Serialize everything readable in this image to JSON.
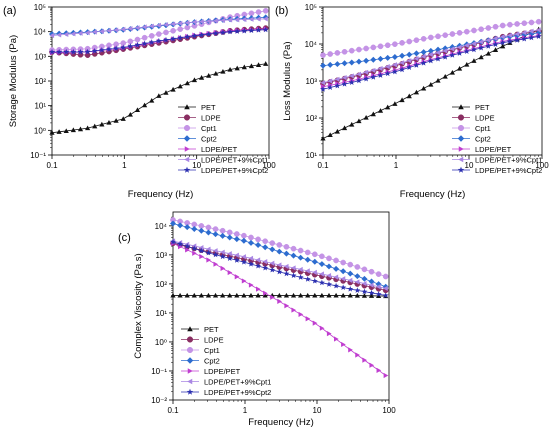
{
  "colors": {
    "PET": "#111111",
    "LDPE": "#8a2e62",
    "Cpt1": "#c493e6",
    "Cpt2": "#2d6ccf",
    "LDPE/PET": "#c03ed0",
    "LDPE/PET+9%Cpt1": "#a986e3",
    "LDPE/PET+9%Cpt2": "#2b2fb0"
  },
  "markers": {
    "PET": "triangle-up-icon",
    "LDPE": "circle-icon",
    "Cpt1": "circle-icon",
    "Cpt2": "diamond-icon",
    "LDPE/PET": "triangle-right-icon",
    "LDPE/PET+9%Cpt1": "triangle-left-icon",
    "LDPE/PET+9%Cpt2": "star-icon"
  },
  "chart_data": [
    {
      "panel": "(a)",
      "type": "scatter",
      "x_scale": "log",
      "y_scale": "log",
      "xlabel": "Frequency (Hz)",
      "ylabel": "Storage Modulus (Pa)",
      "xlim": [
        0.1,
        100
      ],
      "ylim": [
        0.1,
        100000
      ],
      "x_ticks": [
        "0.1",
        "1",
        "10",
        "100"
      ],
      "y_ticks": [
        "10⁻¹",
        "10⁰",
        "10¹",
        "10²",
        "10³",
        "10⁴",
        "10⁵"
      ],
      "legend_position": "bottom-right",
      "series": [
        {
          "name": "PET",
          "points": [
            [
              0.1,
              0.8
            ],
            [
              0.3,
              1.2
            ],
            [
              1,
              3
            ],
            [
              3,
              25
            ],
            [
              10,
              120
            ],
            [
              30,
              300
            ],
            [
              90,
              500
            ]
          ]
        },
        {
          "name": "LDPE",
          "points": [
            [
              0.1,
              1500
            ],
            [
              0.3,
              1100
            ],
            [
              1,
              2000
            ],
            [
              3,
              3500
            ],
            [
              10,
              6500
            ],
            [
              30,
              11000
            ],
            [
              90,
              14000
            ]
          ]
        },
        {
          "name": "Cpt1",
          "points": [
            [
              0.1,
              1800
            ],
            [
              0.3,
              2000
            ],
            [
              1,
              3500
            ],
            [
              3,
              8000
            ],
            [
              10,
              18000
            ],
            [
              30,
              40000
            ],
            [
              90,
              70000
            ]
          ]
        },
        {
          "name": "Cpt2",
          "points": [
            [
              0.1,
              8000
            ],
            [
              0.3,
              9500
            ],
            [
              1,
              12000
            ],
            [
              3,
              17000
            ],
            [
              10,
              25000
            ],
            [
              30,
              32000
            ],
            [
              90,
              38000
            ]
          ]
        },
        {
          "name": "LDPE/PET",
          "points": [
            [
              0.1,
              1400
            ],
            [
              0.3,
              1500
            ],
            [
              1,
              2200
            ],
            [
              3,
              4000
            ],
            [
              10,
              7500
            ],
            [
              30,
              11000
            ],
            [
              90,
              13000
            ]
          ]
        },
        {
          "name": "LDPE/PET+9%Cpt1",
          "points": [
            [
              0.1,
              7000
            ],
            [
              0.3,
              9000
            ],
            [
              1,
              12500
            ],
            [
              3,
              18000
            ],
            [
              10,
              25000
            ],
            [
              30,
              30000
            ],
            [
              90,
              33000
            ]
          ]
        },
        {
          "name": "LDPE/PET+9%Cpt2",
          "points": [
            [
              0.1,
              1500
            ],
            [
              0.3,
              1500
            ],
            [
              1,
              2300
            ],
            [
              3,
              4200
            ],
            [
              10,
              7000
            ],
            [
              30,
              10000
            ],
            [
              90,
              12000
            ]
          ]
        }
      ]
    },
    {
      "panel": "(b)",
      "type": "scatter",
      "x_scale": "log",
      "y_scale": "log",
      "xlabel": "Frequency (Hz)",
      "ylabel": "Loss Modulus (Pa)",
      "xlim": [
        0.1,
        100
      ],
      "ylim": [
        10,
        100000
      ],
      "x_ticks": [
        "0.1",
        "1",
        "10",
        "100"
      ],
      "y_ticks": [
        "10¹",
        "10²",
        "10³",
        "10⁴",
        "10⁵"
      ],
      "legend_position": "bottom-right",
      "series": [
        {
          "name": "PET",
          "points": [
            [
              0.1,
              28
            ],
            [
              0.3,
              80
            ],
            [
              1,
              250
            ],
            [
              3,
              800
            ],
            [
              10,
              3000
            ],
            [
              30,
              9000
            ],
            [
              90,
              25000
            ]
          ]
        },
        {
          "name": "LDPE",
          "points": [
            [
              0.1,
              850
            ],
            [
              0.3,
              1400
            ],
            [
              1,
              2600
            ],
            [
              3,
              5000
            ],
            [
              10,
              9000
            ],
            [
              30,
              16000
            ],
            [
              90,
              22000
            ]
          ]
        },
        {
          "name": "Cpt1",
          "points": [
            [
              0.1,
              5000
            ],
            [
              0.3,
              7000
            ],
            [
              1,
              10000
            ],
            [
              3,
              15000
            ],
            [
              10,
              22000
            ],
            [
              30,
              32000
            ],
            [
              90,
              40000
            ]
          ]
        },
        {
          "name": "Cpt2",
          "points": [
            [
              0.1,
              2600
            ],
            [
              0.3,
              3300
            ],
            [
              1,
              4500
            ],
            [
              3,
              6500
            ],
            [
              10,
              10000
            ],
            [
              30,
              15000
            ],
            [
              90,
              20000
            ]
          ]
        },
        {
          "name": "LDPE/PET",
          "points": [
            [
              0.1,
              700
            ],
            [
              0.3,
              1100
            ],
            [
              1,
              2000
            ],
            [
              3,
              3800
            ],
            [
              10,
              7000
            ],
            [
              30,
              12000
            ],
            [
              90,
              17000
            ]
          ]
        },
        {
          "name": "LDPE/PET+9%Cpt1",
          "points": [
            [
              0.1,
              900
            ],
            [
              0.3,
              1500
            ],
            [
              1,
              2800
            ],
            [
              3,
              5200
            ],
            [
              10,
              9500
            ],
            [
              30,
              16000
            ],
            [
              90,
              24000
            ]
          ]
        },
        {
          "name": "LDPE/PET+9%Cpt2",
          "points": [
            [
              0.1,
              600
            ],
            [
              0.3,
              1000
            ],
            [
              1,
              1800
            ],
            [
              3,
              3500
            ],
            [
              10,
              6500
            ],
            [
              30,
              11000
            ],
            [
              90,
              16000
            ]
          ]
        }
      ]
    },
    {
      "panel": "(c)",
      "type": "scatter",
      "x_scale": "log",
      "y_scale": "log",
      "xlabel": "Frequency (Hz)",
      "ylabel": "Complex Viscosity (Pa.s)",
      "xlim": [
        0.1,
        100
      ],
      "ylim": [
        0.01,
        30000
      ],
      "x_ticks": [
        "0.1",
        "1",
        "10",
        "100"
      ],
      "y_ticks": [
        "10⁻²",
        "10⁻¹",
        "10⁰",
        "10¹",
        "10²",
        "10³",
        "10⁴"
      ],
      "legend_position": "bottom-left",
      "series": [
        {
          "name": "PET",
          "points": [
            [
              0.1,
              40
            ],
            [
              0.3,
              40
            ],
            [
              1,
              40
            ],
            [
              3,
              40
            ],
            [
              10,
              40
            ],
            [
              30,
              40
            ],
            [
              90,
              38
            ]
          ]
        },
        {
          "name": "LDPE",
          "points": [
            [
              0.1,
              2500
            ],
            [
              0.3,
              1300
            ],
            [
              1,
              700
            ],
            [
              3,
              380
            ],
            [
              10,
              200
            ],
            [
              30,
              110
            ],
            [
              90,
              60
            ]
          ]
        },
        {
          "name": "Cpt1",
          "points": [
            [
              0.1,
              16000
            ],
            [
              0.3,
              9000
            ],
            [
              1,
              4500
            ],
            [
              3,
              2200
            ],
            [
              10,
              1000
            ],
            [
              30,
              450
            ],
            [
              90,
              180
            ]
          ]
        },
        {
          "name": "Cpt2",
          "points": [
            [
              0.1,
              12000
            ],
            [
              0.3,
              6000
            ],
            [
              1,
              3000
            ],
            [
              3,
              1300
            ],
            [
              10,
              550
            ],
            [
              30,
              220
            ],
            [
              90,
              80
            ]
          ]
        },
        {
          "name": "LDPE/PET",
          "points": [
            [
              0.1,
              2500
            ],
            [
              0.3,
              700
            ],
            [
              1,
              120
            ],
            [
              3,
              25
            ],
            [
              10,
              4
            ],
            [
              30,
              0.5
            ],
            [
              90,
              0.07
            ]
          ]
        },
        {
          "name": "LDPE/PET+9%Cpt1",
          "points": [
            [
              0.1,
              3000
            ],
            [
              0.3,
              1600
            ],
            [
              1,
              850
            ],
            [
              3,
              450
            ],
            [
              10,
              240
            ],
            [
              30,
              130
            ],
            [
              90,
              70
            ]
          ]
        },
        {
          "name": "LDPE/PET+9%Cpt2",
          "points": [
            [
              0.1,
              2800
            ],
            [
              0.3,
              1200
            ],
            [
              1,
              550
            ],
            [
              3,
              260
            ],
            [
              10,
              120
            ],
            [
              30,
              65
            ],
            [
              90,
              40
            ]
          ]
        }
      ]
    }
  ]
}
